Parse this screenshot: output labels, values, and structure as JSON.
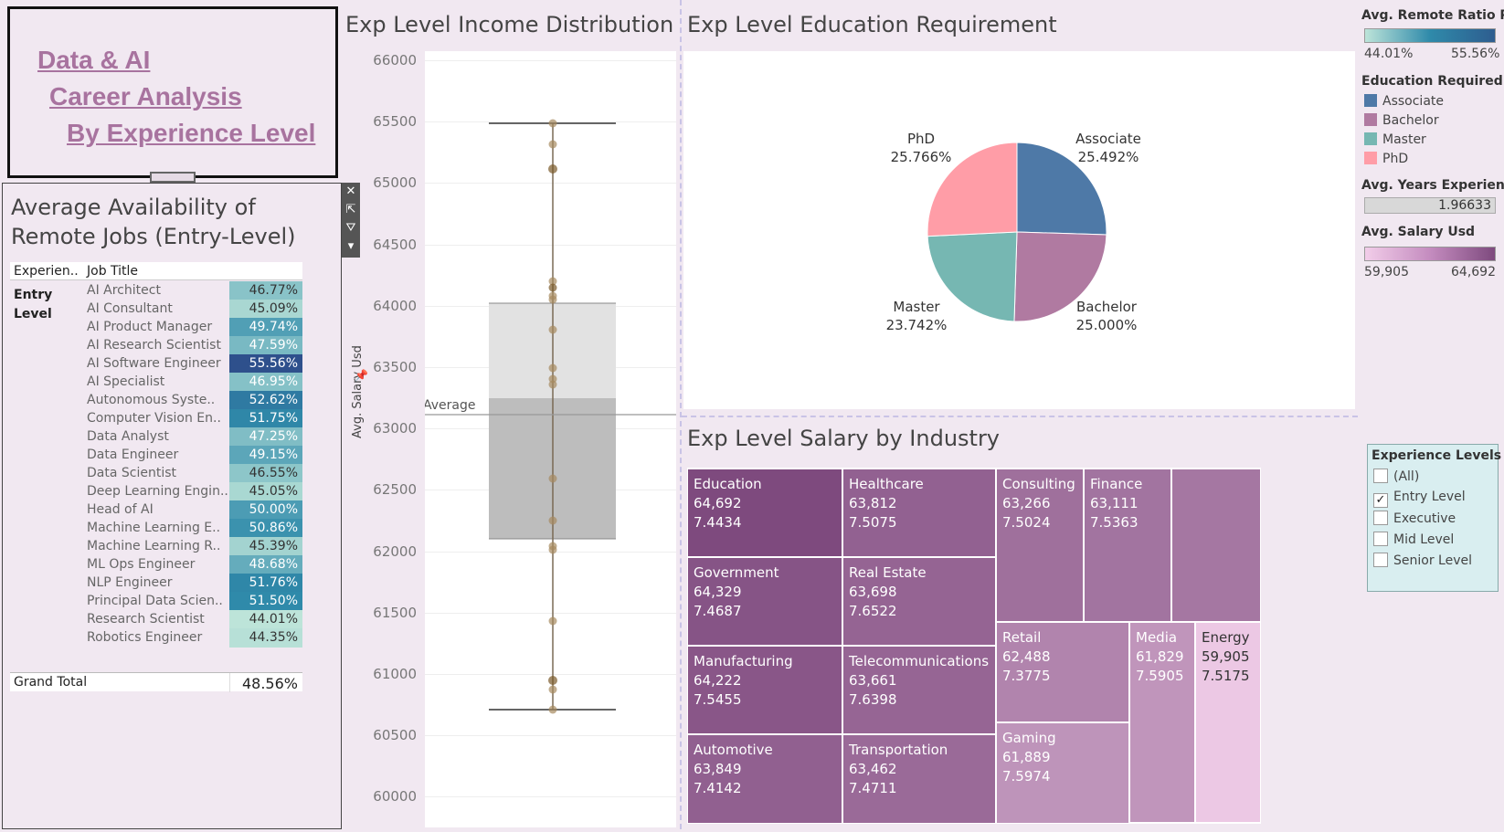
{
  "title": {
    "line1": "Data & AI",
    "line2": "Career Analysis",
    "line3": "By Experience Level"
  },
  "remote_table": {
    "title_line1": "Average Availability of",
    "title_line2": "Remote Jobs (Entry-Level)",
    "col_experience": "Experien..",
    "col_job": "Job Title",
    "level_line1": "Entry",
    "level_line2": "Level",
    "rows": [
      {
        "job": "AI Architect",
        "value": "46.77%"
      },
      {
        "job": "AI Consultant",
        "value": "45.09%"
      },
      {
        "job": "AI Product Manager",
        "value": "49.74%"
      },
      {
        "job": "AI Research Scientist",
        "value": "47.59%"
      },
      {
        "job": "AI Software Engineer",
        "value": "55.56%"
      },
      {
        "job": "AI Specialist",
        "value": "46.95%"
      },
      {
        "job": "Autonomous Syste..",
        "value": "52.62%"
      },
      {
        "job": "Computer Vision En..",
        "value": "51.75%"
      },
      {
        "job": "Data Analyst",
        "value": "47.25%"
      },
      {
        "job": "Data Engineer",
        "value": "49.15%"
      },
      {
        "job": "Data Scientist",
        "value": "46.55%"
      },
      {
        "job": "Deep Learning Engin..",
        "value": "45.05%"
      },
      {
        "job": "Head of AI",
        "value": "50.00%"
      },
      {
        "job": "Machine Learning E..",
        "value": "50.86%"
      },
      {
        "job": "Machine Learning R..",
        "value": "45.39%"
      },
      {
        "job": "ML Ops Engineer",
        "value": "48.68%"
      },
      {
        "job": "NLP Engineer",
        "value": "51.76%"
      },
      {
        "job": "Principal Data Scien..",
        "value": "51.50%"
      },
      {
        "job": "Research Scientist",
        "value": "44.01%"
      },
      {
        "job": "Robotics Engineer",
        "value": "44.35%"
      }
    ],
    "grand_total_label": "Grand Total",
    "grand_total_value": "48.56%"
  },
  "box_chart": {
    "title": "Exp Level Income Distribution",
    "ylabel": "Avg. Salary Usd",
    "average_label": "Average",
    "ticks": [
      "66000",
      "65500",
      "65000",
      "64500",
      "64000",
      "63500",
      "63000",
      "62500",
      "62000",
      "61500",
      "61000",
      "60500",
      "60000"
    ]
  },
  "pie_chart": {
    "title": "Exp Level Education Requirement",
    "slices": [
      {
        "name": "Associate",
        "pct": "25.492%",
        "color": "#4e79a7"
      },
      {
        "name": "Bachelor",
        "pct": "25.000%",
        "color": "#b07aa1"
      },
      {
        "name": "Master",
        "pct": "23.742%",
        "color": "#76b7b2"
      },
      {
        "name": "PhD",
        "pct": "25.766%",
        "color": "#ff9da7"
      }
    ]
  },
  "treemap": {
    "title": "Exp Level Salary by Industry",
    "cells": [
      {
        "name": "Education",
        "salary": "64,692",
        "years": "7.4434"
      },
      {
        "name": "Healthcare",
        "salary": "63,812",
        "years": "7.5075"
      },
      {
        "name": "Consulting",
        "salary": "63,266",
        "years": "7.5024"
      },
      {
        "name": "Finance",
        "salary": "63,111",
        "years": "7.5363"
      },
      {
        "name": "Government",
        "salary": "64,329",
        "years": "7.4687"
      },
      {
        "name": "Real Estate",
        "salary": "63,698",
        "years": "7.6522"
      },
      {
        "name": "Manufacturing",
        "salary": "64,222",
        "years": "7.5455"
      },
      {
        "name": "Telecommunications",
        "salary": "63,661",
        "years": "7.6398"
      },
      {
        "name": "Retail",
        "salary": "62,488",
        "years": "7.3775"
      },
      {
        "name": "Media",
        "salary": "61,829",
        "years": "7.5905"
      },
      {
        "name": "Energy",
        "salary": "59,905",
        "years": "7.5175"
      },
      {
        "name": "Automotive",
        "salary": "63,849",
        "years": "7.4142"
      },
      {
        "name": "Transportation",
        "salary": "63,462",
        "years": "7.4711"
      },
      {
        "name": "Gaming",
        "salary": "61,889",
        "years": "7.5974"
      }
    ]
  },
  "legends": {
    "remote_title": "Avg. Remote Ratio P..",
    "remote_min": "44.01%",
    "remote_max": "55.56%",
    "edu_title": "Education Required",
    "edu_items": [
      "Associate",
      "Bachelor",
      "Master",
      "PhD"
    ],
    "years_title": "Avg. Years Experien..",
    "years_value": "1.96633",
    "salary_title": "Avg. Salary Usd",
    "salary_min": "59,905",
    "salary_max": "64,692"
  },
  "filter": {
    "title": "Experience Levels",
    "options": [
      {
        "label": "(All)",
        "checked": false
      },
      {
        "label": "Entry Level",
        "checked": true
      },
      {
        "label": "Executive",
        "checked": false
      },
      {
        "label": "Mid Level",
        "checked": false
      },
      {
        "label": "Senior Level",
        "checked": false
      }
    ]
  }
}
